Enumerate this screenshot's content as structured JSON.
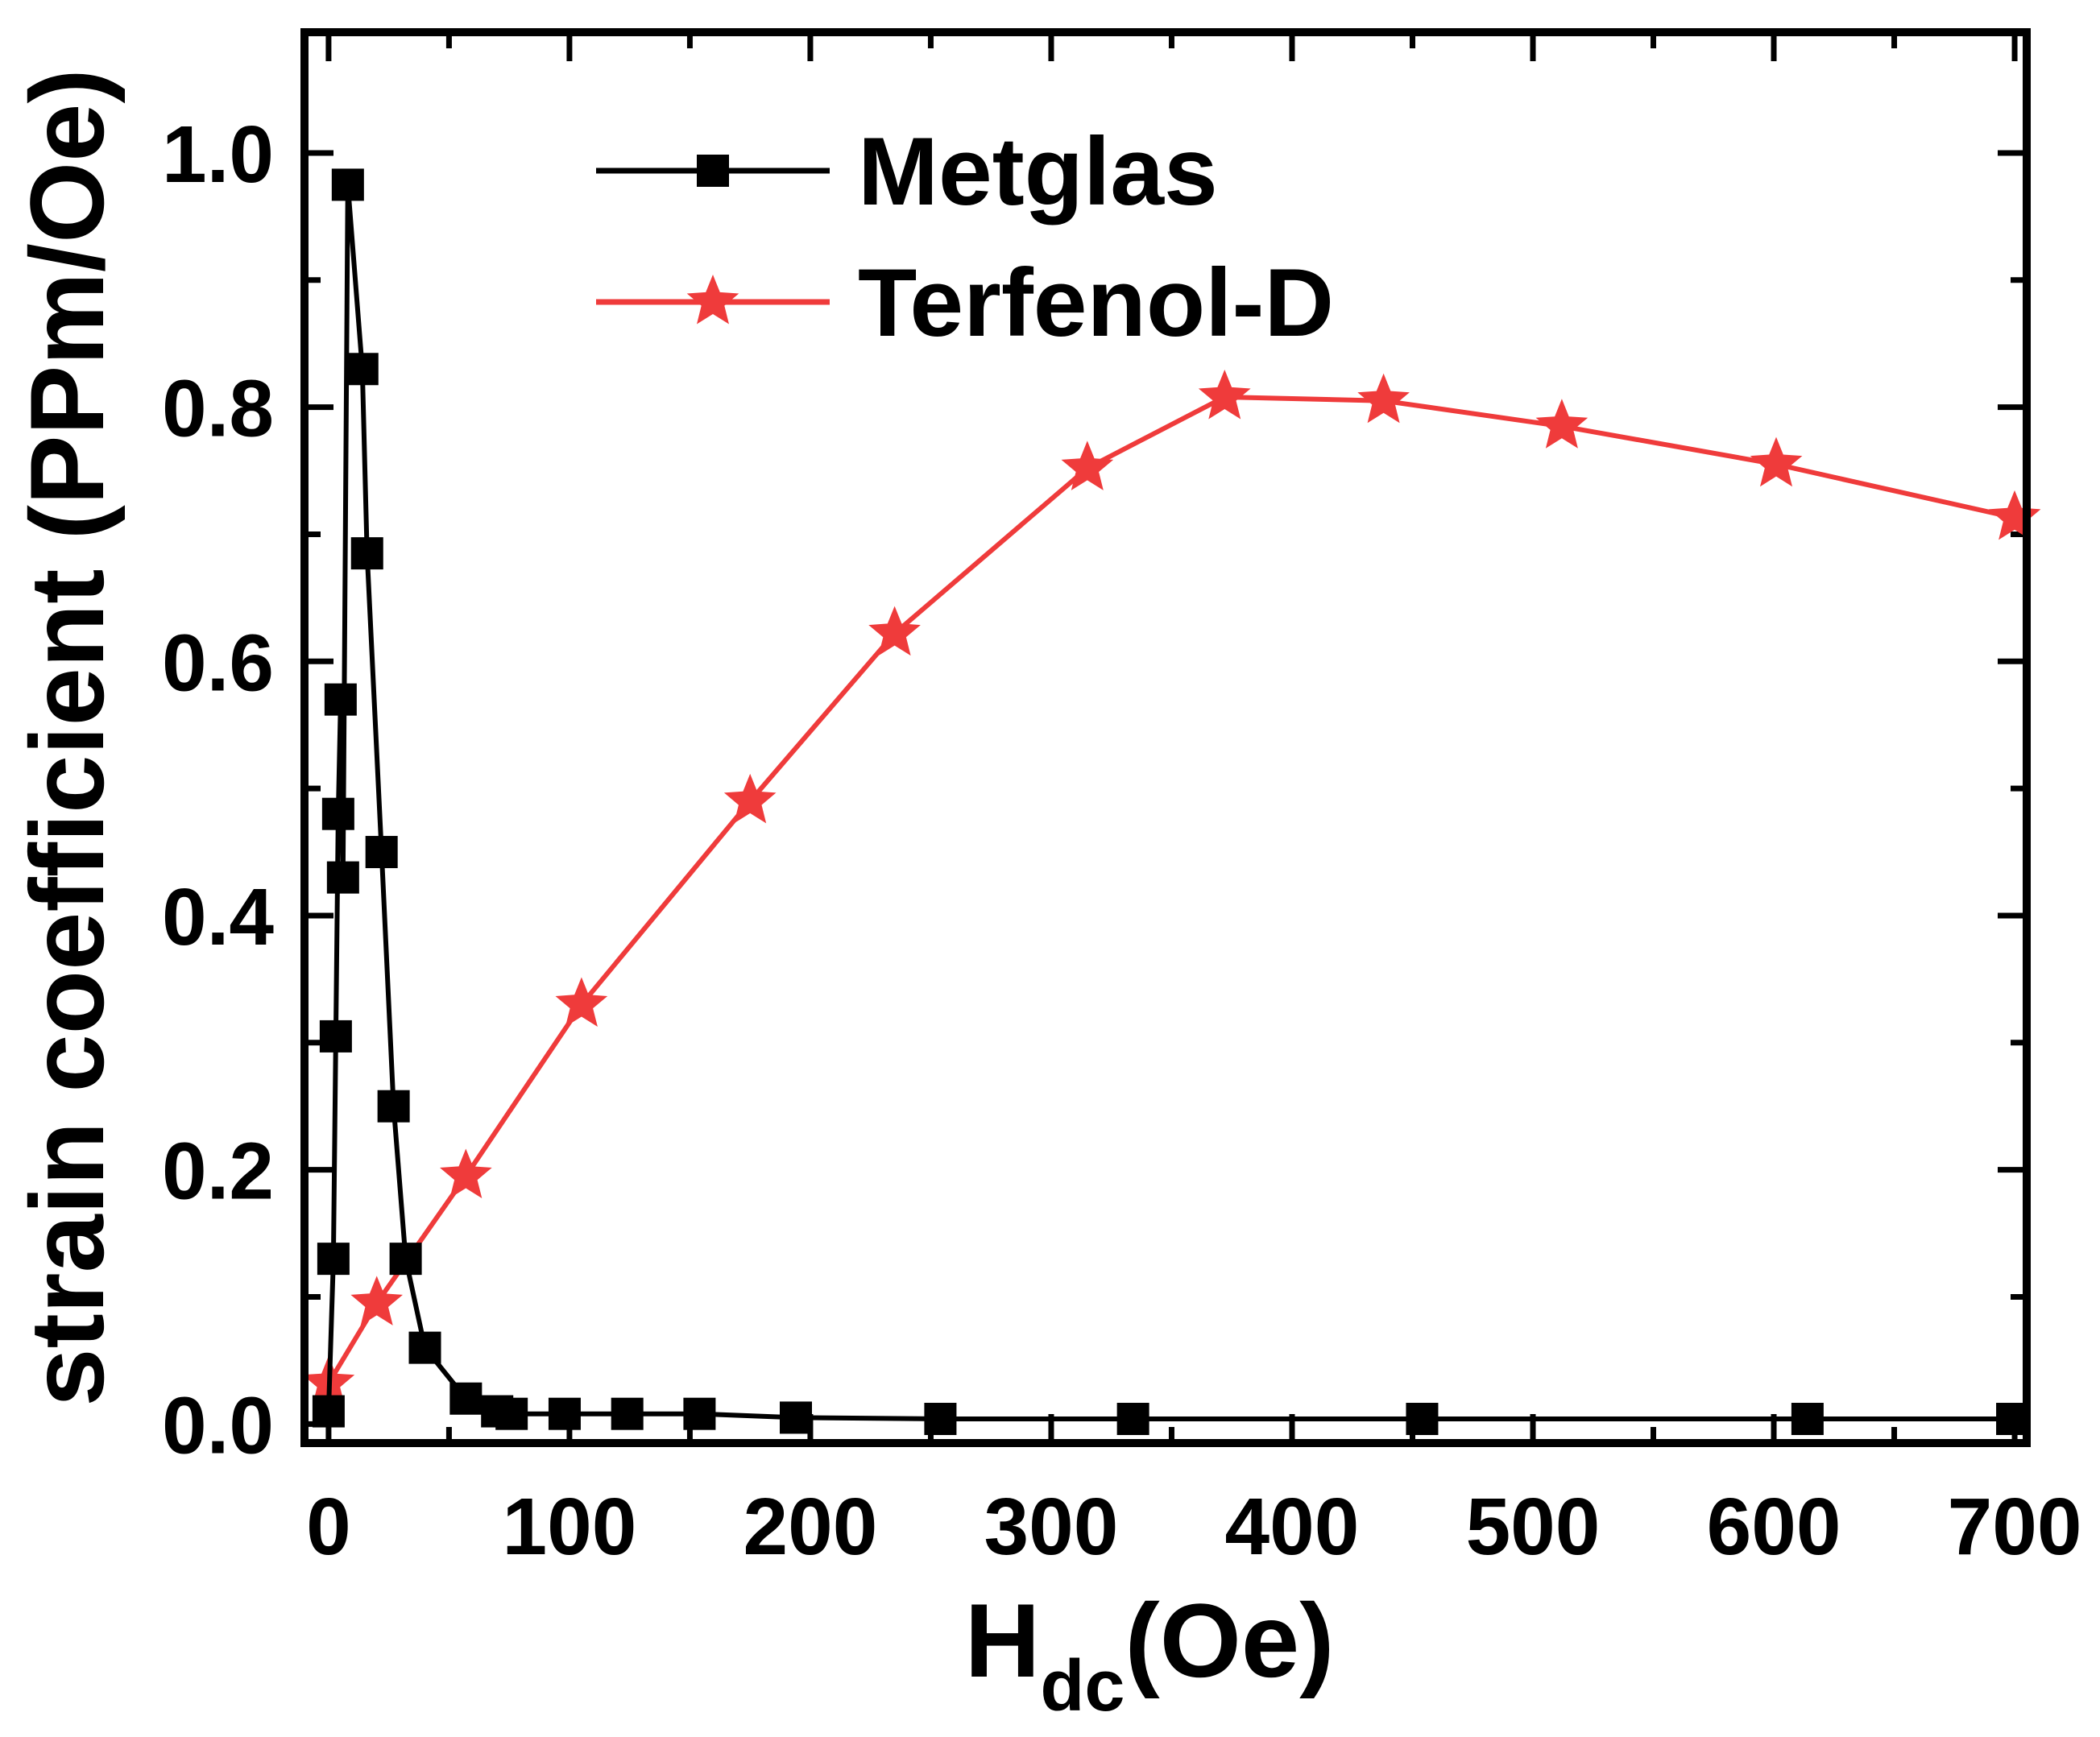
{
  "chart_data": {
    "type": "line",
    "title": "",
    "xlabel_main": "H",
    "xlabel_sub": "dc",
    "xlabel_unit": "(Oe)",
    "ylabel": "strain coefficient (PPm/Oe)",
    "xlim": [
      -10,
      705
    ],
    "ylim": [
      -0.015,
      1.095
    ],
    "xticks": [
      0,
      100,
      200,
      300,
      400,
      500,
      600,
      700
    ],
    "xtick_labels": [
      "0",
      "100",
      "200",
      "300",
      "400",
      "500",
      "600",
      "700"
    ],
    "yticks": [
      0.0,
      0.2,
      0.4,
      0.6,
      0.8,
      1.0
    ],
    "ytick_labels": [
      "0.0",
      "0.2",
      "0.4",
      "0.6",
      "0.8",
      "1.0"
    ],
    "grid": false,
    "legend_position": "top-center",
    "series": [
      {
        "name": "Metglas",
        "color": "#000000",
        "marker": "square",
        "x": [
          0,
          2,
          3,
          4,
          5,
          6,
          8,
          14,
          16,
          22,
          27,
          32,
          40,
          57,
          70,
          76,
          98,
          124,
          154,
          194,
          254,
          334,
          454,
          614,
          699
        ],
        "y": [
          0.01,
          0.13,
          0.305,
          0.48,
          0.57,
          0.43,
          0.975,
          0.83,
          0.685,
          0.45,
          0.25,
          0.13,
          0.06,
          0.02,
          0.01,
          0.008,
          0.008,
          0.008,
          0.008,
          0.005,
          0.004,
          0.004,
          0.004,
          0.004,
          0.004
        ]
      },
      {
        "name": "Terfenol-D",
        "color": "#ef3b3b",
        "marker": "star",
        "x": [
          0,
          20,
          57,
          105,
          175,
          235,
          315,
          372,
          438,
          512,
          601,
          700
        ],
        "y": [
          0.032,
          0.095,
          0.195,
          0.33,
          0.49,
          0.622,
          0.752,
          0.808,
          0.805,
          0.785,
          0.755,
          0.713
        ]
      }
    ]
  }
}
